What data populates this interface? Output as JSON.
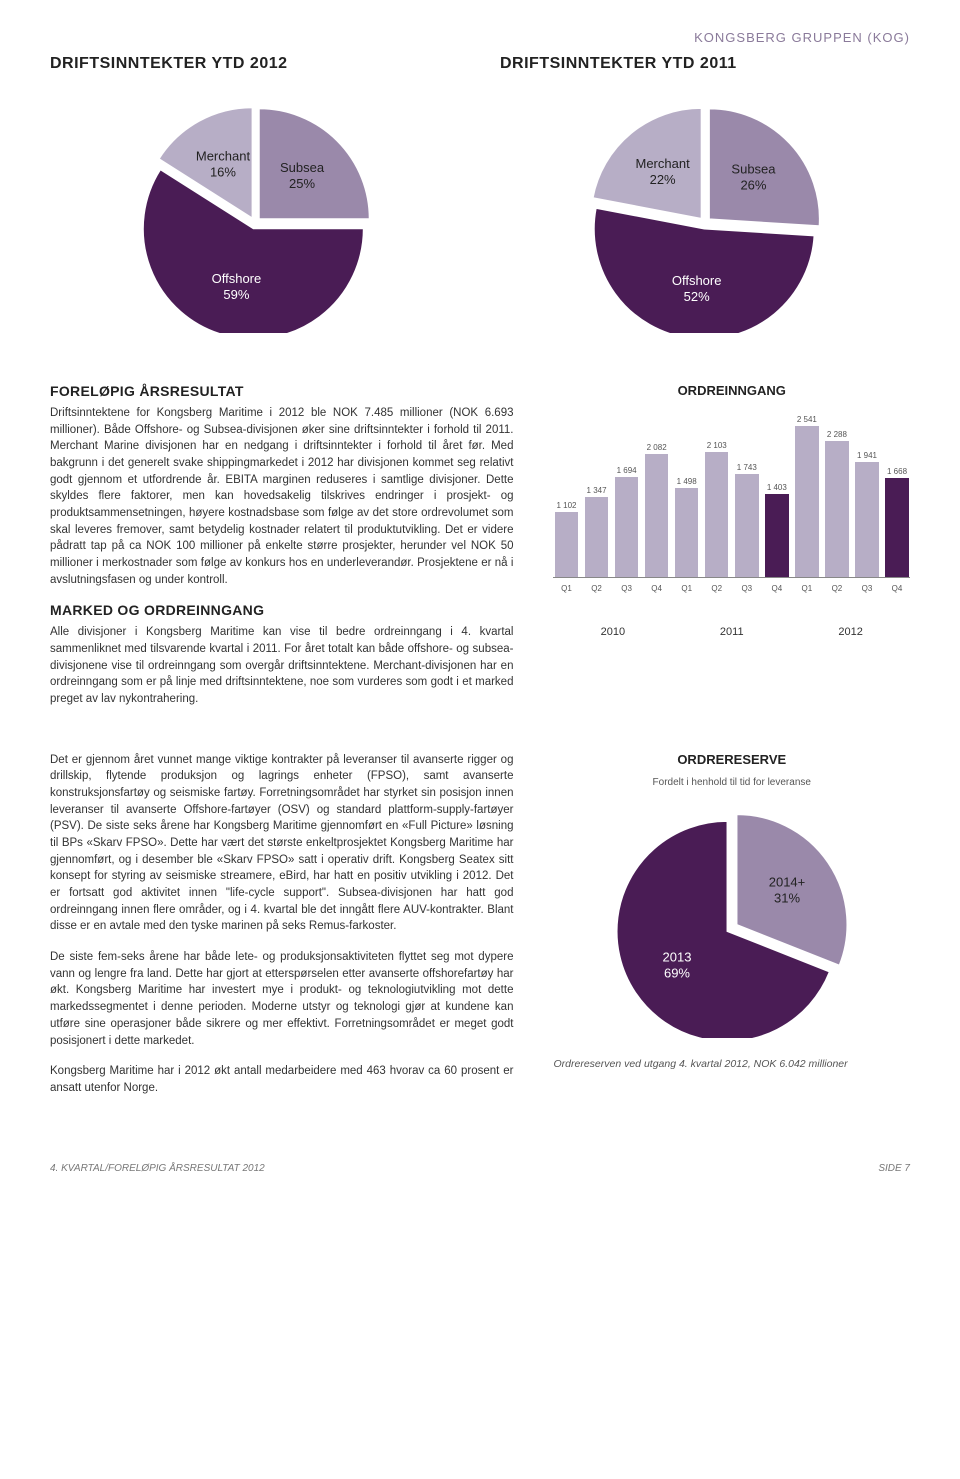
{
  "header": {
    "company": "KONGSBERG GRUPPEN (KOG)"
  },
  "pie2012": {
    "title": "DRIFTSINNTEKTER YTD 2012",
    "slices": [
      {
        "label": "Subsea",
        "pct": "25%",
        "value": 25,
        "color": "#9a89aa"
      },
      {
        "label": "Offshore",
        "pct": "59%",
        "value": 59,
        "color": "#4a1c55"
      },
      {
        "label": "Merchant",
        "pct": "16%",
        "value": 16,
        "color": "#b7aec6"
      }
    ],
    "label_color": "#333333",
    "radius": 110
  },
  "pie2011": {
    "title": "DRIFTSINNTEKTER YTD 2011",
    "slices": [
      {
        "label": "Subsea",
        "pct": "26%",
        "value": 26,
        "color": "#9a89aa"
      },
      {
        "label": "Offshore",
        "pct": "52%",
        "value": 52,
        "color": "#4a1c55"
      },
      {
        "label": "Merchant",
        "pct": "22%",
        "value": 22,
        "color": "#b7aec6"
      }
    ],
    "label_color": "#333333",
    "radius": 110
  },
  "sectionA": {
    "heading": "FORELØPIG ÅRSRESULTAT",
    "body": "Driftsinntektene for Kongsberg Maritime i 2012 ble NOK 7.485 millioner (NOK 6.693 millioner). Både Offshore- og Subsea-divisjonen øker sine driftsinntekter i forhold til 2011. Merchant Marine divisjonen har en nedgang i driftsinntekter i forhold til året før. Med bakgrunn i det generelt svake shippingmarkedet i 2012 har divisjonen kommet seg relativt godt gjennom et utfordrende år. EBITA marginen reduseres i samtlige divisjoner. Dette skyldes flere faktorer, men kan hovedsakelig tilskrives endringer i prosjekt- og produktsammensetningen, høyere kostnadsbase som følge av det store ordrevolumet som skal leveres fremover, samt betydelig kostnader relatert til produktutvikling. Det er videre pådratt tap på ca NOK 100 millioner på enkelte større prosjekter, herunder vel NOK 50 millioner i merkostnader som følge av konkurs hos en underleverandør. Prosjektene er nå i avslutningsfasen og under kontroll."
  },
  "sectionB": {
    "heading": "MARKED OG ORDREINNGANG",
    "body": "Alle divisjoner i Kongsberg Maritime kan vise til bedre ordreinngang i 4. kvartal sammenliknet med tilsvarende kvartal i 2011. For året totalt kan både offshore- og subsea-divisjonene vise til ordreinngang som overgår driftsinntektene. Merchant-divisjonen har en ordreinngang som er på linje med driftsinntektene, noe som vurderes som godt i et marked preget av lav nykontrahering."
  },
  "sectionC": {
    "body": "Det er gjennom året vunnet mange viktige kontrakter på leveranser til avanserte rigger og drillskip, flytende produksjon og lagrings enheter (FPSO), samt avanserte konstruksjonsfartøy og seismiske fartøy. Forretningsområdet har styrket sin posisjon innen leveranser til avanserte Offshore-fartøyer (OSV) og standard plattform-supply-fartøyer (PSV). De siste seks årene har Kongsberg Maritime gjennomført en «Full Picture» løsning til BPs «Skarv FPSO». Dette har vært det største enkeltprosjektet Kongsberg Maritime har gjennomført, og i desember ble «Skarv FPSO» satt i operativ drift. Kongsberg Seatex sitt konsept for styring av seismiske streamere, eBird, har hatt en positiv utvikling i 2012. Det er fortsatt god aktivitet innen \"life-cycle support\". Subsea-divisjonen har hatt god ordreinngang innen flere områder, og i 4. kvartal ble det inngått flere AUV-kontrakter. Blant disse er en avtale med den tyske marinen på seks Remus-farkoster."
  },
  "sectionD": {
    "body": "De siste fem-seks årene har både lete- og produksjonsaktiviteten flyttet seg mot dypere vann og lengre fra land. Dette har gjort at etterspørselen etter avanserte offshorefartøy har økt. Kongsberg Maritime har investert mye i produkt- og teknologiutvikling mot dette markedssegmentet i denne perioden. Moderne utstyr og teknologi gjør at kundene kan utføre sine operasjoner både sikrere og mer effektivt. Forretningsområdet er meget godt posisjonert i dette markedet."
  },
  "sectionE": {
    "body": "Kongsberg Maritime har i 2012 økt antall medarbeidere med 463 hvorav ca 60 prosent er ansatt utenfor Norge."
  },
  "barChart": {
    "title": "ORDREINNGANG",
    "max": 2700,
    "bar_color_default": "#b7aec6",
    "bar_color_highlight": "#4a1c55",
    "value_color": "#666666",
    "axis_color": "#888888",
    "bars": [
      {
        "q": "Q1",
        "value": 1102,
        "label": "1 102",
        "highlight": false
      },
      {
        "q": "Q2",
        "value": 1347,
        "label": "1 347",
        "highlight": false
      },
      {
        "q": "Q3",
        "value": 1694,
        "label": "1 694",
        "highlight": false
      },
      {
        "q": "Q4",
        "value": 2082,
        "label": "2 082",
        "highlight": false
      },
      {
        "q": "Q1",
        "value": 1498,
        "label": "1 498",
        "highlight": false
      },
      {
        "q": "Q2",
        "value": 2103,
        "label": "2 103",
        "highlight": false
      },
      {
        "q": "Q3",
        "value": 1743,
        "label": "1 743",
        "highlight": false
      },
      {
        "q": "Q4",
        "value": 1403,
        "label": "1 403",
        "highlight": true
      },
      {
        "q": "Q1",
        "value": 2541,
        "label": "2 541",
        "highlight": false
      },
      {
        "q": "Q2",
        "value": 2288,
        "label": "2 288",
        "highlight": false
      },
      {
        "q": "Q3",
        "value": 1941,
        "label": "1 941",
        "highlight": false
      },
      {
        "q": "Q4",
        "value": 1668,
        "label": "1 668",
        "highlight": true
      }
    ],
    "years": [
      "2010",
      "2011",
      "2012"
    ]
  },
  "reserve": {
    "title": "ORDRERESERVE",
    "subtitle": "Fordelt i henhold til tid for leveranse",
    "slices": [
      {
        "label": "2014+",
        "pct": "31%",
        "value": 31,
        "color": "#9a89aa"
      },
      {
        "label": "2013",
        "pct": "69%",
        "value": 69,
        "color": "#4a1c55"
      }
    ],
    "note": "Ordrereserven ved utgang 4. kvartal 2012, NOK 6.042 millioner",
    "radius": 110
  },
  "footer": {
    "left": "4. KVARTAL/FORELØPIG ÅRSRESULTAT 2012",
    "right": "SIDE 7"
  }
}
